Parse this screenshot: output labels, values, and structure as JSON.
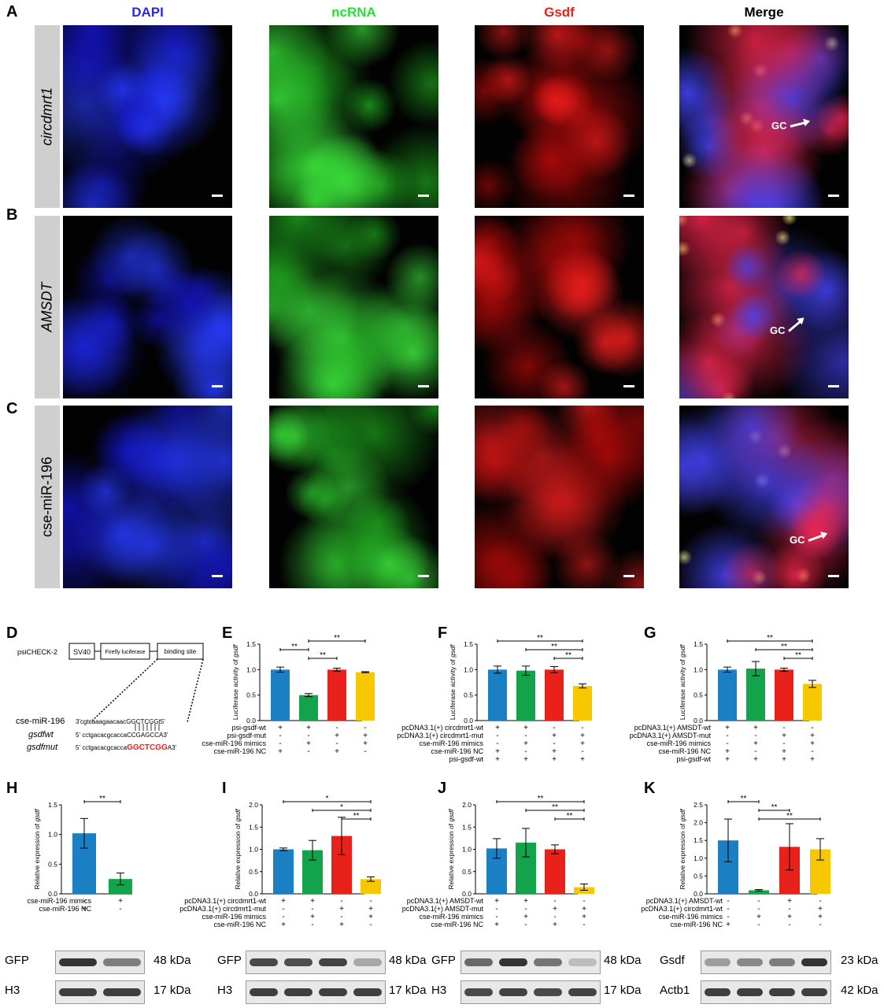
{
  "panels": {
    "A": "A",
    "B": "B",
    "C": "C",
    "D": "D",
    "E": "E",
    "F": "F",
    "G": "G",
    "H": "H",
    "I": "I",
    "J": "J",
    "K": "K"
  },
  "fish": {
    "columns": [
      "DAPI",
      "ncRNA",
      "Gsdf",
      "Merge"
    ],
    "column_colors": [
      "#2a2ae6",
      "#2bdc3a",
      "#e8221b",
      "#000000"
    ],
    "rows": [
      "circdmrt1",
      "AMSDT",
      "cse-miR-196"
    ],
    "gc_label": "GC"
  },
  "construct": {
    "vector": "psiCHECK-2",
    "promoter": "SV40",
    "gene": "Firefly luciferase",
    "site": "binding site",
    "seq_rows": [
      {
        "name": "cse-miR-196",
        "seq": "3'cgtcaaagaacaacGGCTCGGt5'",
        "highlight": ""
      },
      {
        "name": "gsdfwt",
        "seq": "5'  cctgacacgcaccaCCGAGCCA3'",
        "highlight": ""
      },
      {
        "name": "gsdfmut",
        "seq": "5'  cctgacacgcacca",
        "highlight": "GGCTCGG",
        "tail": "A3'"
      }
    ]
  },
  "chart_data": [
    {
      "panel": "E",
      "type": "bar",
      "ylabel": "Luciferase activity of gsdf",
      "ylim": [
        0,
        1.5
      ],
      "yticks": [
        "0.0",
        "0.5",
        "1.0",
        "1.5"
      ],
      "values": [
        1.0,
        0.5,
        1.0,
        0.95
      ],
      "errors": [
        0.05,
        0.03,
        0.03,
        0.01
      ],
      "colors": [
        "#1b7fc4",
        "#13a34a",
        "#e8221b",
        "#f7c800"
      ],
      "sig": [
        {
          "a": 1,
          "b": 3,
          "label": "**"
        },
        {
          "a": 0,
          "b": 1,
          "label": "**"
        },
        {
          "a": 1,
          "b": 2,
          "label": "**"
        }
      ],
      "conditions": [
        {
          "label": "psi-gsdf-wt",
          "values": [
            "+",
            "+",
            "-",
            "-"
          ]
        },
        {
          "label": "psi-gsdf-mut",
          "values": [
            "-",
            "-",
            "+",
            "+"
          ]
        },
        {
          "label": "cse-miR-196 mimics",
          "values": [
            "-",
            "+",
            "-",
            "+"
          ]
        },
        {
          "label": "cse-miR-196 NC",
          "values": [
            "+",
            "-",
            "+",
            "-"
          ]
        }
      ]
    },
    {
      "panel": "F",
      "type": "bar",
      "ylabel": "Luciferase activity of gsdf",
      "ylim": [
        0,
        1.5
      ],
      "yticks": [
        "0.0",
        "0.5",
        "1.0",
        "1.5"
      ],
      "values": [
        1.0,
        0.98,
        1.0,
        0.68
      ],
      "errors": [
        0.07,
        0.09,
        0.06,
        0.04
      ],
      "colors": [
        "#1b7fc4",
        "#13a34a",
        "#e8221b",
        "#f7c800"
      ],
      "sig": [
        {
          "a": 0,
          "b": 3,
          "label": "**"
        },
        {
          "a": 1,
          "b": 3,
          "label": "**"
        },
        {
          "a": 2,
          "b": 3,
          "label": "**"
        }
      ],
      "conditions": [
        {
          "label": "pcDNA3.1(+) circdmrt1-wt",
          "values": [
            "+",
            "+",
            "-",
            "-"
          ]
        },
        {
          "label": "pcDNA3.1(+) circdmrt1-mut",
          "values": [
            "-",
            "-",
            "+",
            "+"
          ]
        },
        {
          "label": "cse-miR-196 mimics",
          "values": [
            "-",
            "+",
            "-",
            "+"
          ]
        },
        {
          "label": "cse-miR-196 NC",
          "values": [
            "+",
            "-",
            "+",
            "-"
          ]
        },
        {
          "label": "psi-gsdf-wt",
          "values": [
            "+",
            "+",
            "+",
            "+"
          ]
        }
      ]
    },
    {
      "panel": "G",
      "type": "bar",
      "ylabel": "Luciferase activity of gsdf",
      "ylim": [
        0,
        1.5
      ],
      "yticks": [
        "0.0",
        "0.5",
        "1.0",
        "1.5"
      ],
      "values": [
        1.0,
        1.02,
        1.0,
        0.72
      ],
      "errors": [
        0.05,
        0.14,
        0.03,
        0.07
      ],
      "colors": [
        "#1b7fc4",
        "#13a34a",
        "#e8221b",
        "#f7c800"
      ],
      "sig": [
        {
          "a": 0,
          "b": 3,
          "label": "**"
        },
        {
          "a": 1,
          "b": 3,
          "label": "**"
        },
        {
          "a": 2,
          "b": 3,
          "label": "**"
        }
      ],
      "conditions": [
        {
          "label": "pcDNA3.1(+) AMSDT-wt",
          "values": [
            "+",
            "+",
            "-",
            "-"
          ]
        },
        {
          "label": "pcDNA3.1(+) AMSDT-mut",
          "values": [
            "-",
            "-",
            "+",
            "+"
          ]
        },
        {
          "label": "cse-miR-196 mimics",
          "values": [
            "-",
            "+",
            "-",
            "+"
          ]
        },
        {
          "label": "cse-miR-196 NC",
          "values": [
            "+",
            "-",
            "+",
            "-"
          ]
        },
        {
          "label": "psi-gsdf-wt",
          "values": [
            "+",
            "+",
            "+",
            "+"
          ]
        }
      ]
    },
    {
      "panel": "H",
      "type": "bar",
      "ylabel": "Relative expression of gsdf",
      "ylim": [
        0,
        1.5
      ],
      "yticks": [
        "0.0",
        "0.5",
        "1.0",
        "1.5"
      ],
      "values": [
        1.02,
        0.25
      ],
      "errors": [
        0.25,
        0.1
      ],
      "colors": [
        "#1b7fc4",
        "#13a34a"
      ],
      "sig": [
        {
          "a": 0,
          "b": 1,
          "label": "**"
        }
      ],
      "conditions": [
        {
          "label": "cse-miR-196 mimics",
          "values": [
            "-",
            "+"
          ]
        },
        {
          "label": "cse-miR-196 NC",
          "values": [
            "+",
            "-"
          ]
        }
      ]
    },
    {
      "panel": "I",
      "type": "bar",
      "ylabel": "Relative expression of gsdf",
      "ylim": [
        0,
        2.0
      ],
      "yticks": [
        "0.0",
        "0.5",
        "1.0",
        "1.5",
        "2.0"
      ],
      "values": [
        1.0,
        0.98,
        1.3,
        0.33
      ],
      "errors": [
        0.03,
        0.22,
        0.42,
        0.05
      ],
      "colors": [
        "#1b7fc4",
        "#13a34a",
        "#e8221b",
        "#f7c800"
      ],
      "sig": [
        {
          "a": 0,
          "b": 3,
          "label": "*"
        },
        {
          "a": 1,
          "b": 3,
          "label": "*"
        },
        {
          "a": 2,
          "b": 3,
          "label": "**"
        }
      ],
      "conditions": [
        {
          "label": "pcDNA3.1(+) circdmrt1-wt",
          "values": [
            "+",
            "+",
            "-",
            "-"
          ]
        },
        {
          "label": "pcDNA3.1(+) circdmrt1-mut",
          "values": [
            "-",
            "-",
            "+",
            "+"
          ]
        },
        {
          "label": "cse-miR-196 mimics",
          "values": [
            "-",
            "+",
            "-",
            "+"
          ]
        },
        {
          "label": "cse-miR-196 NC",
          "values": [
            "+",
            "-",
            "+",
            "-"
          ]
        }
      ]
    },
    {
      "panel": "J",
      "type": "bar",
      "ylabel": "Relative expression of gsdf",
      "ylim": [
        0,
        2.0
      ],
      "yticks": [
        "0.0",
        "0.5",
        "1.0",
        "1.5",
        "2.0"
      ],
      "values": [
        1.02,
        1.15,
        1.0,
        0.15
      ],
      "errors": [
        0.22,
        0.32,
        0.1,
        0.07
      ],
      "colors": [
        "#1b7fc4",
        "#13a34a",
        "#e8221b",
        "#f7c800"
      ],
      "sig": [
        {
          "a": 0,
          "b": 3,
          "label": "**"
        },
        {
          "a": 1,
          "b": 3,
          "label": "**"
        },
        {
          "a": 2,
          "b": 3,
          "label": "**"
        }
      ],
      "conditions": [
        {
          "label": "pcDNA3.1(+) AMSDT-wt",
          "values": [
            "+",
            "+",
            "-",
            "-"
          ]
        },
        {
          "label": "pcDNA3.1(+) AMSDT-mut",
          "values": [
            "-",
            "-",
            "+",
            "+"
          ]
        },
        {
          "label": "cse-miR-196 mimics",
          "values": [
            "-",
            "+",
            "-",
            "+"
          ]
        },
        {
          "label": "cse-miR-196 NC",
          "values": [
            "+",
            "-",
            "+",
            "-"
          ]
        }
      ]
    },
    {
      "panel": "K",
      "type": "bar",
      "ylabel": "Relative expression of gsdf",
      "ylim": [
        0,
        2.5
      ],
      "yticks": [
        "0.0",
        "0.5",
        "1.0",
        "1.5",
        "2.0",
        "2.5"
      ],
      "values": [
        1.5,
        0.1,
        1.32,
        1.25
      ],
      "errors": [
        0.6,
        0.02,
        0.65,
        0.3
      ],
      "colors": [
        "#1b7fc4",
        "#13a34a",
        "#e8221b",
        "#f7c800"
      ],
      "sig": [
        {
          "a": 0,
          "b": 1,
          "label": "**"
        },
        {
          "a": 1,
          "b": 2,
          "label": "**"
        },
        {
          "a": 1,
          "b": 3,
          "label": "**"
        }
      ],
      "conditions": [
        {
          "label": "pcDNA3.1(+) AMSDT-wt",
          "values": [
            "-",
            "-",
            "+",
            "-"
          ]
        },
        {
          "label": "pcDNA3.1(+) circdmrt1-wt",
          "values": [
            "-",
            "-",
            "-",
            "+"
          ]
        },
        {
          "label": "cse-miR-196 mimics",
          "values": [
            "-",
            "+",
            "+",
            "+"
          ]
        },
        {
          "label": "cse-miR-196 NC",
          "values": [
            "+",
            "-",
            "-",
            "-"
          ]
        }
      ]
    }
  ],
  "blots": {
    "H": {
      "top": "GFP",
      "top_kda": "48 kDa",
      "bottom": "H3",
      "bottom_kda": "17 kDa"
    },
    "I": {
      "top": "GFP",
      "top_kda": "48 kDa",
      "bottom": "H3",
      "bottom_kda": "17 kDa"
    },
    "J": {
      "top": "GFP",
      "top_kda": "48 kDa",
      "bottom": "H3",
      "bottom_kda": "17 kDa"
    },
    "K": {
      "top": "Gsdf",
      "top_kda": "23 kDa",
      "bottom": "Actb1",
      "bottom_kda": "42 kDa"
    }
  }
}
